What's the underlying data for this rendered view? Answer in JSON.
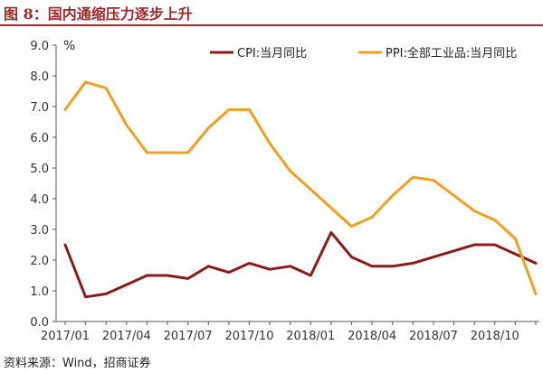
{
  "header": {
    "title": "图 8：国内通缩压力逐步上升"
  },
  "footer": {
    "source": "资料来源：Wind，招商证券"
  },
  "chart_data": {
    "type": "line",
    "unit_label": "%",
    "ylim": [
      0,
      9
    ],
    "yticks": [
      "0.0",
      "1.0",
      "2.0",
      "3.0",
      "4.0",
      "5.0",
      "6.0",
      "7.0",
      "8.0",
      "9.0"
    ],
    "x": [
      "2017/01",
      "2017/02",
      "2017/03",
      "2017/04",
      "2017/05",
      "2017/06",
      "2017/07",
      "2017/08",
      "2017/09",
      "2017/10",
      "2017/11",
      "2017/12",
      "2018/01",
      "2018/02",
      "2018/03",
      "2018/04",
      "2018/05",
      "2018/06",
      "2018/07",
      "2018/08",
      "2018/09",
      "2018/10",
      "2018/11",
      "2018/12"
    ],
    "xtick_labels": [
      "2017/01",
      "2017/04",
      "2017/07",
      "2017/10",
      "2018/01",
      "2018/04",
      "2018/07",
      "2018/10"
    ],
    "xtick_index": [
      0,
      3,
      6,
      9,
      12,
      15,
      18,
      21
    ],
    "legend_position": "top",
    "grid": false,
    "series": [
      {
        "name": "CPI:当月同比",
        "color": "#8b1a1a",
        "values": [
          2.5,
          0.8,
          0.9,
          1.2,
          1.5,
          1.5,
          1.4,
          1.8,
          1.6,
          1.9,
          1.7,
          1.8,
          1.5,
          2.9,
          2.1,
          1.8,
          1.8,
          1.9,
          2.1,
          2.3,
          2.5,
          2.5,
          2.2,
          1.9
        ]
      },
      {
        "name": "PPI:全部工业品:当月同比",
        "color": "#f0a020",
        "values": [
          6.9,
          7.8,
          7.6,
          6.4,
          5.5,
          5.5,
          5.5,
          6.3,
          6.9,
          6.9,
          5.8,
          4.9,
          4.3,
          3.7,
          3.1,
          3.4,
          4.1,
          4.7,
          4.6,
          4.1,
          3.6,
          3.3,
          2.7,
          0.9
        ]
      }
    ]
  }
}
